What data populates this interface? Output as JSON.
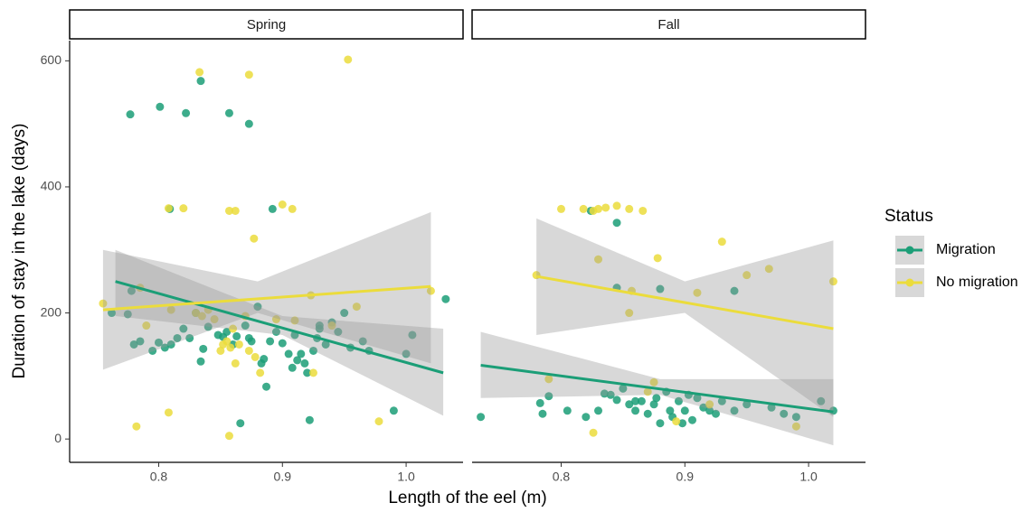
{
  "chart_data": {
    "type": "scatter",
    "facets": [
      "Spring",
      "Fall"
    ],
    "xlabel": "Length of the eel (m)",
    "ylabel": "Duration of stay in the lake (days)",
    "legend_title": "Status",
    "legend": "right",
    "xlim": [
      0.728,
      1.046
    ],
    "ylim": [
      -37,
      632
    ],
    "xticks": [
      {
        "value": 0.8,
        "label": "0.8"
      },
      {
        "value": 0.9,
        "label": "0.9"
      },
      {
        "value": 1.0,
        "label": "1.0"
      }
    ],
    "yticks": [
      0,
      200,
      400,
      600
    ],
    "band_color": "#999999",
    "series": [
      {
        "name": "Migration",
        "color": "#1b9e77",
        "panels": [
          {
            "x": [
              0.777,
              0.801,
              0.822,
              0.857,
              0.873,
              0.834,
              0.809,
              0.892,
              0.762,
              0.775,
              0.78,
              0.785,
              0.795,
              0.8,
              0.805,
              0.81,
              0.815,
              0.82,
              0.825,
              0.83,
              0.834,
              0.836,
              0.84,
              0.848,
              0.852,
              0.855,
              0.86,
              0.863,
              0.866,
              0.87,
              0.873,
              0.875,
              0.88,
              0.883,
              0.885,
              0.887,
              0.89,
              0.895,
              0.9,
              0.905,
              0.908,
              0.91,
              0.912,
              0.915,
              0.918,
              0.92,
              0.922,
              0.925,
              0.928,
              0.93,
              0.935,
              0.94,
              0.945,
              0.95,
              0.955,
              0.965,
              0.97,
              0.99,
              1.0,
              1.005,
              1.032,
              0.778,
              0.93
            ],
            "values": [
              515,
              527,
              517,
              517,
              500,
              568,
              365,
              365,
              200,
              198,
              150,
              155,
              140,
              153,
              145,
              150,
              160,
              175,
              160,
              200,
              123,
              143,
              178,
              165,
              162,
              170,
              150,
              163,
              25,
              180,
              160,
              155,
              210,
              120,
              127,
              83,
              155,
              170,
              152,
              135,
              113,
              165,
              125,
              135,
              120,
              105,
              30,
              140,
              160,
              175,
              150,
              185,
              170,
              200,
              145,
              155,
              140,
              45,
              135,
              165,
              222,
              235,
              180
            ],
            "trend_x": [
              0.765,
              1.03
            ],
            "trend": [
              250,
              105
            ],
            "band_x": [
              0.765,
              0.9,
              1.03
            ],
            "band_lower": [
              195,
              165,
              37
            ],
            "band_upper": [
              300,
              195,
              175
            ]
          },
          {
            "x": [
              0.735,
              0.785,
              0.79,
              0.805,
              0.82,
              0.83,
              0.835,
              0.84,
              0.845,
              0.85,
              0.855,
              0.86,
              0.865,
              0.87,
              0.875,
              0.877,
              0.88,
              0.885,
              0.888,
              0.89,
              0.895,
              0.898,
              0.9,
              0.903,
              0.906,
              0.91,
              0.915,
              0.92,
              0.925,
              0.93,
              0.94,
              0.95,
              0.97,
              0.98,
              0.99,
              1.01,
              1.02,
              0.845,
              0.88,
              0.94,
              0.86,
              0.824,
              0.845,
              0.783
            ],
            "values": [
              35,
              40,
              68,
              45,
              35,
              45,
              72,
              70,
              62,
              80,
              55,
              45,
              60,
              40,
              55,
              65,
              25,
              75,
              45,
              35,
              60,
              25,
              45,
              70,
              30,
              65,
              50,
              45,
              40,
              60,
              45,
              55,
              50,
              40,
              35,
              60,
              45,
              240,
              238,
              235,
              60,
              362,
              343,
              57
            ],
            "trend_x": [
              0.735,
              1.02
            ],
            "trend": [
              117,
              43
            ],
            "band_x": [
              0.735,
              0.88,
              1.02
            ],
            "band_lower": [
              65,
              70,
              -10
            ],
            "band_upper": [
              170,
              95,
              95
            ]
          }
        ]
      },
      {
        "name": "No migration",
        "color": "#ebdc3c",
        "panels": [
          {
            "x": [
              0.833,
              0.873,
              0.953,
              0.808,
              0.82,
              0.857,
              0.862,
              0.9,
              0.908,
              0.877,
              0.755,
              0.79,
              0.782,
              0.808,
              0.857,
              0.978,
              0.83,
              0.835,
              0.84,
              0.845,
              0.85,
              0.852,
              0.855,
              0.858,
              0.86,
              0.862,
              0.865,
              0.87,
              0.873,
              0.878,
              0.882,
              0.895,
              0.91,
              0.923,
              0.925,
              0.94,
              0.96,
              1.02,
              0.785,
              0.81
            ],
            "values": [
              582,
              578,
              602,
              366,
              366,
              362,
              362,
              372,
              365,
              318,
              215,
              180,
              20,
              42,
              5,
              28,
              200,
              195,
              205,
              190,
              140,
              150,
              155,
              145,
              175,
              120,
              150,
              195,
              140,
              130,
              105,
              190,
              188,
              228,
              105,
              180,
              210,
              235,
              240,
              205
            ],
            "trend_x": [
              0.755,
              1.02
            ],
            "trend": [
              205,
              242
            ],
            "band_x": [
              0.755,
              0.88,
              1.02
            ],
            "band_lower": [
              110,
              200,
              120
            ],
            "band_upper": [
              300,
              250,
              360
            ]
          },
          {
            "x": [
              0.8,
              0.818,
              0.826,
              0.83,
              0.836,
              0.845,
              0.855,
              0.866,
              0.93,
              0.78,
              0.83,
              0.857,
              0.855,
              0.878,
              0.91,
              0.95,
              0.968,
              1.02,
              0.79,
              0.826,
              0.893,
              0.875,
              0.92,
              0.99,
              0.87
            ],
            "values": [
              365,
              365,
              362,
              365,
              367,
              370,
              365,
              362,
              313,
              260,
              285,
              235,
              200,
              287,
              232,
              260,
              270,
              250,
              95,
              10,
              28,
              90,
              55,
              20,
              75
            ],
            "trend_x": [
              0.78,
              1.02
            ],
            "trend": [
              258,
              175
            ],
            "band_x": [
              0.78,
              0.9,
              1.02
            ],
            "band_lower": [
              165,
              200,
              35
            ],
            "band_upper": [
              350,
              250,
              315
            ]
          }
        ]
      }
    ]
  }
}
